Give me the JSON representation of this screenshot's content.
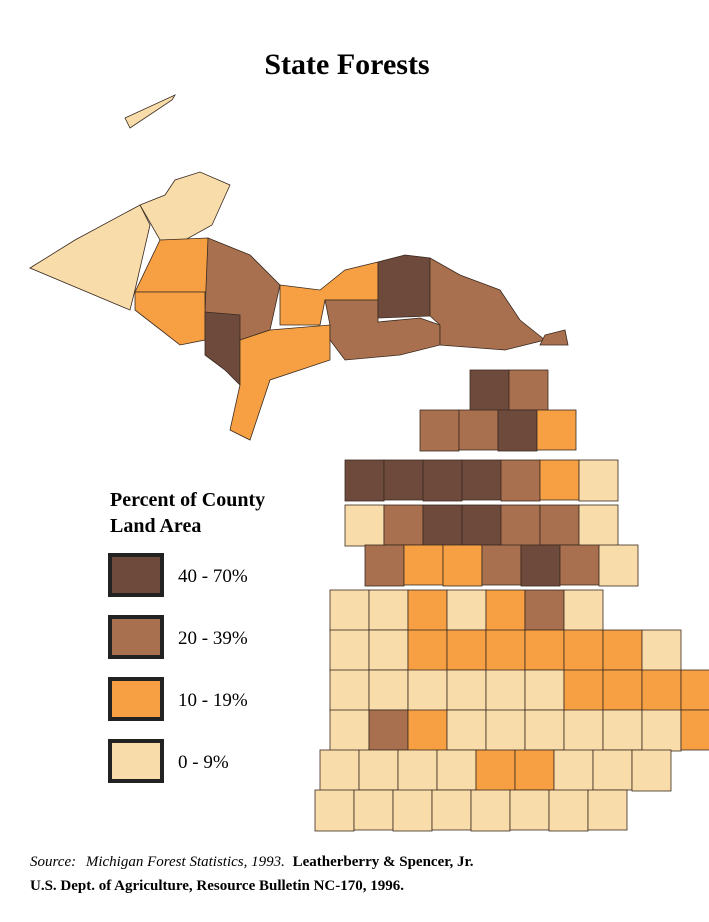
{
  "title": "State Forests",
  "legend": {
    "title": [
      "Percent of County",
      "Land Area"
    ],
    "items": [
      {
        "label": "40 - 70%",
        "color": "#6e4a3c"
      },
      {
        "label": "20 - 39%",
        "color": "#a8704e"
      },
      {
        "label": "10 - 19%",
        "color": "#f6a043"
      },
      {
        "label": "0 -  9%",
        "color": "#f8dcaa"
      }
    ]
  },
  "source": {
    "lead": "Source:",
    "work": "Michigan Forest Statistics, 1993.",
    "authors": "Leatherberry & Spencer, Jr.",
    "line2": "U.S. Dept. of Agriculture, Resource Bulletin NC-170, 1996."
  }
}
